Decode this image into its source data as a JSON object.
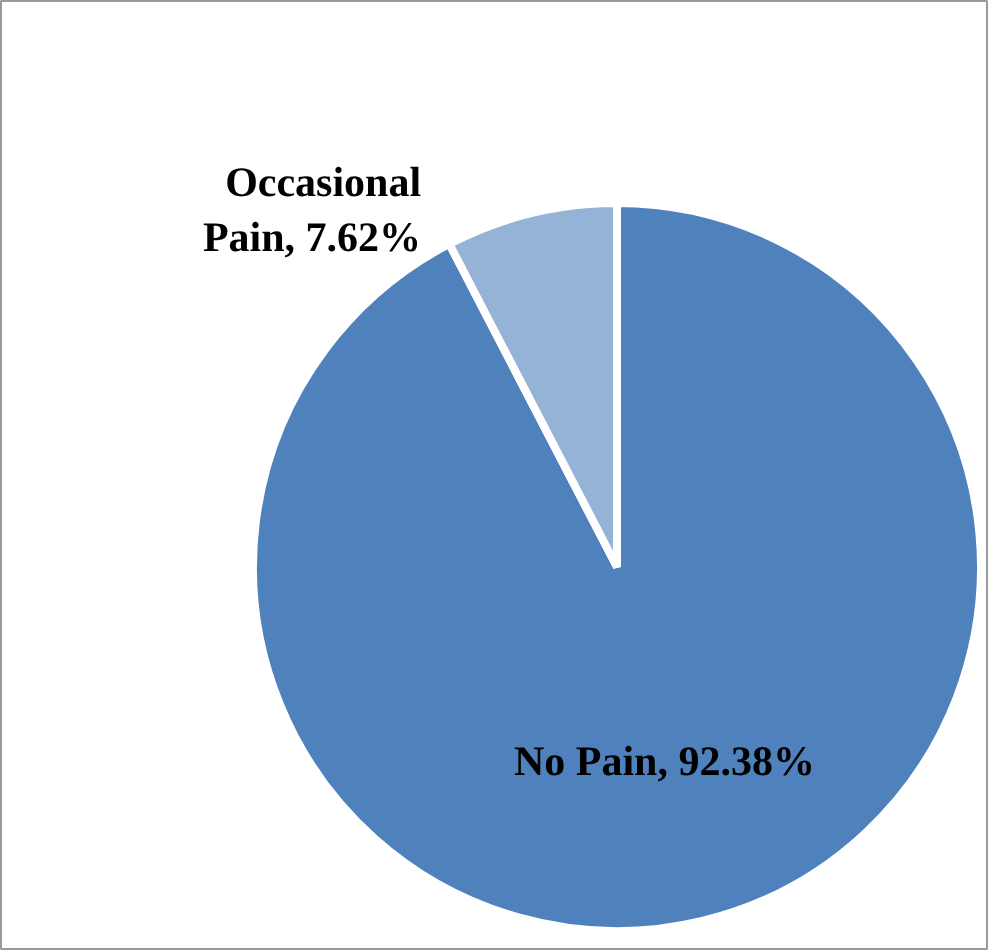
{
  "chart_data": {
    "type": "pie",
    "categories": [
      "No Pain",
      "Occasional Pain"
    ],
    "values": [
      92.38,
      7.62
    ],
    "value_labels": [
      "92.38%",
      "7.62%"
    ],
    "colors": [
      "#4f81bd",
      "#95b3d7"
    ],
    "legend": false
  }
}
